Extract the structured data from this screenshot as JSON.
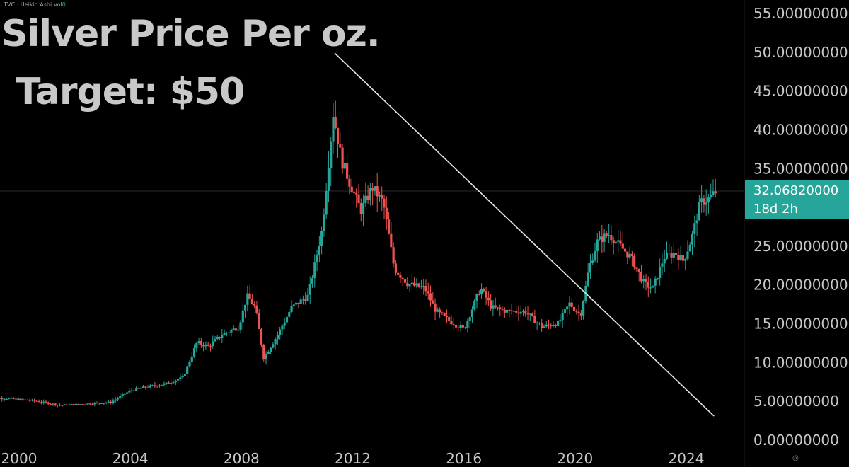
{
  "header": {
    "symbol_meta": "· TVC · Heikin Ashi",
    "vol_label": "Vol",
    "vol_value": "0"
  },
  "title": {
    "line1": "Silver Price Per oz.",
    "line2": "Target: $50"
  },
  "price_tag": {
    "price": "32.06820000",
    "countdown": "18d 2h",
    "color": "#26a69a"
  },
  "colors": {
    "background": "#000000",
    "up": "#26a69a",
    "down": "#ef5350",
    "trendline": "#e6e6e6",
    "axis_text": "#c8c8c8"
  },
  "chart_data": {
    "type": "candlestick",
    "chart_style": "Heikin Ashi",
    "y_axis": {
      "ticks": [
        0,
        5,
        10,
        15,
        20,
        25,
        30,
        35,
        40,
        45,
        50,
        55
      ],
      "tick_labels": [
        "0.00000000",
        "5.00000000",
        "10.00000000",
        "15.00000000",
        "20.00000000",
        "25.00000000",
        "",
        "35.00000000",
        "40.00000000",
        "45.00000000",
        "50.00000000",
        "55.00000000"
      ],
      "range": [
        0,
        55
      ]
    },
    "x_axis": {
      "ticks": [
        2000,
        2004,
        2008,
        2012,
        2016,
        2020,
        2024
      ],
      "tick_labels": [
        "2000",
        "2004",
        "2008",
        "2012",
        "2016",
        "2020",
        "2024"
      ],
      "range": [
        1998.8,
        2025.5
      ]
    },
    "current_price": 32.0682,
    "series_path": [
      [
        1998.8,
        5.3
      ],
      [
        1999.5,
        5.3
      ],
      [
        2000.5,
        5.0
      ],
      [
        2001.5,
        4.4
      ],
      [
        2002.5,
        4.6
      ],
      [
        2003.3,
        4.8
      ],
      [
        2004.0,
        6.3
      ],
      [
        2004.5,
        6.7
      ],
      [
        2005.3,
        7.2
      ],
      [
        2005.9,
        8.0
      ],
      [
        2006.4,
        12.5
      ],
      [
        2006.8,
        12.0
      ],
      [
        2007.3,
        13.5
      ],
      [
        2007.9,
        14.5
      ],
      [
        2008.2,
        18.5
      ],
      [
        2008.5,
        17.0
      ],
      [
        2008.8,
        10.5
      ],
      [
        2009.3,
        13.5
      ],
      [
        2009.8,
        17.0
      ],
      [
        2010.4,
        18.5
      ],
      [
        2010.9,
        27.0
      ],
      [
        2011.3,
        42.0
      ],
      [
        2011.6,
        36.0
      ],
      [
        2011.9,
        33.0
      ],
      [
        2012.3,
        29.5
      ],
      [
        2012.7,
        32.5
      ],
      [
        2013.1,
        30.5
      ],
      [
        2013.5,
        22.0
      ],
      [
        2014.0,
        20.0
      ],
      [
        2014.6,
        19.5
      ],
      [
        2015.0,
        16.5
      ],
      [
        2015.6,
        15.0
      ],
      [
        2016.0,
        14.2
      ],
      [
        2016.6,
        19.5
      ],
      [
        2017.0,
        17.0
      ],
      [
        2017.6,
        16.5
      ],
      [
        2018.2,
        16.5
      ],
      [
        2018.8,
        14.5
      ],
      [
        2019.4,
        15.0
      ],
      [
        2019.8,
        17.5
      ],
      [
        2020.2,
        16.0
      ],
      [
        2020.5,
        22.0
      ],
      [
        2020.8,
        25.5
      ],
      [
        2021.2,
        26.5
      ],
      [
        2021.6,
        25.0
      ],
      [
        2022.0,
        23.5
      ],
      [
        2022.5,
        20.0
      ],
      [
        2022.8,
        19.5
      ],
      [
        2023.2,
        23.5
      ],
      [
        2023.6,
        24.0
      ],
      [
        2023.9,
        23.0
      ],
      [
        2024.2,
        26.0
      ],
      [
        2024.5,
        30.5
      ],
      [
        2024.8,
        31.0
      ],
      [
        2025.1,
        32.07
      ]
    ],
    "trendline": {
      "start": [
        2011.35,
        49.8
      ],
      "end": [
        2025.0,
        3.0
      ]
    }
  }
}
